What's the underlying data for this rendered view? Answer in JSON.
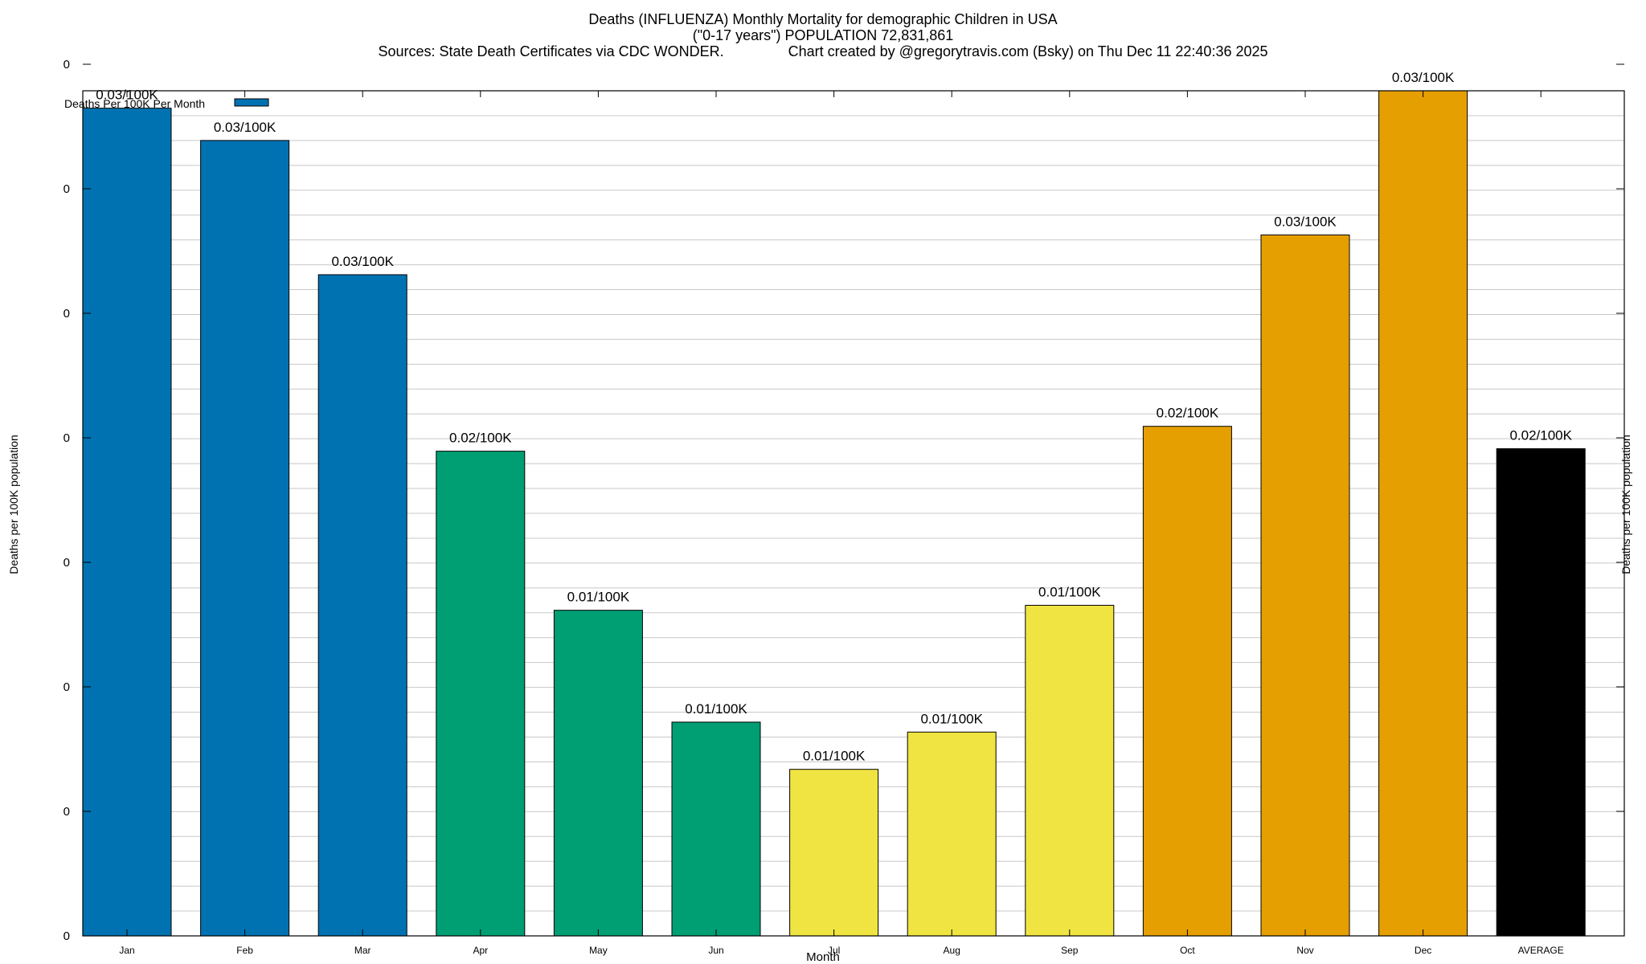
{
  "chart_data": {
    "type": "bar",
    "title_lines": [
      "Deaths (INFLUENZA) Monthly Mortality for demographic Children in USA",
      "(\"0-17 years\") POPULATION 72,831,861",
      "Sources: State Death Certificates via CDC WONDER.                Chart created by @gregorytravis.com (Bsky) on Thu Dec 11 22:40:36 2025"
    ],
    "xlabel": "Month",
    "ylabel_left": "Deaths per 100K population",
    "ylabel_right": "Deaths per 100K population",
    "legend": {
      "label": "Deaths Per 100K Per Month",
      "position": "top-left",
      "color": "#0072b2"
    },
    "y_tick_labels": [
      "0",
      "0",
      "0",
      "0",
      "0",
      "0",
      "0",
      "0"
    ],
    "ylim": [
      0,
      0.034
    ],
    "grid": true,
    "categories": [
      "Jan",
      "Feb",
      "Mar",
      "Apr",
      "May",
      "Jun",
      "Jul",
      "Aug",
      "Sep",
      "Oct",
      "Nov",
      "Dec",
      "AVERAGE"
    ],
    "values": [
      0.0333,
      0.032,
      0.0266,
      0.0195,
      0.0131,
      0.0086,
      0.0067,
      0.0082,
      0.0133,
      0.0205,
      0.0282,
      0.034,
      0.0196
    ],
    "data_labels": [
      "0.03/100K",
      "0.03/100K",
      "0.03/100K",
      "0.02/100K",
      "0.01/100K",
      "0.01/100K",
      "0.01/100K",
      "0.01/100K",
      "0.01/100K",
      "0.02/100K",
      "0.03/100K",
      "0.03/100K",
      "0.02/100K"
    ],
    "colors": [
      "#0072b2",
      "#0072b2",
      "#0072b2",
      "#009e73",
      "#009e73",
      "#009e73",
      "#f0e442",
      "#f0e442",
      "#f0e442",
      "#e69f00",
      "#e69f00",
      "#e69f00",
      "#000000"
    ]
  }
}
